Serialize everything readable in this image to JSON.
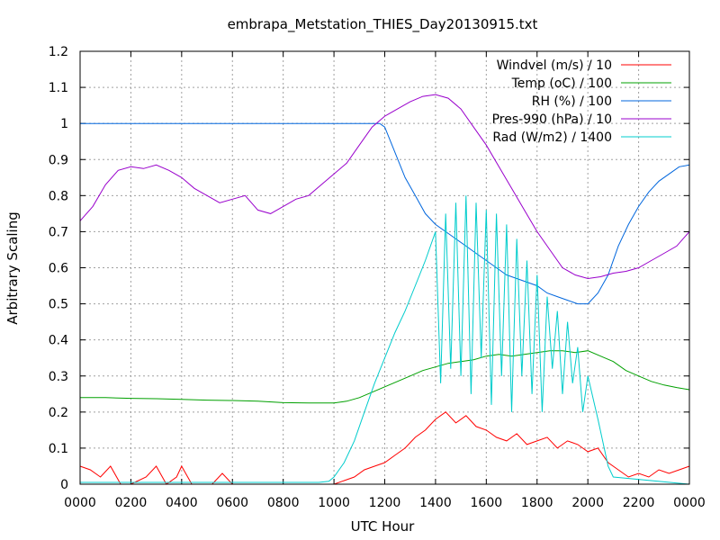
{
  "chart_data": {
    "type": "line",
    "title": "embrapa_Metstation_THIES_Day20130915.txt",
    "xlabel": "UTC Hour",
    "ylabel": "Arbitrary Scaling",
    "xlim": [
      0,
      2400
    ],
    "ylim": [
      0,
      1.2
    ],
    "x_ticks": [
      "0000",
      "0200",
      "0400",
      "0600",
      "0800",
      "1000",
      "1200",
      "1400",
      "1600",
      "1800",
      "2000",
      "2200",
      "0000"
    ],
    "y_ticks": [
      "0",
      "0.1",
      "0.2",
      "0.3",
      "0.4",
      "0.5",
      "0.6",
      "0.7",
      "0.8",
      "0.9",
      "1",
      "1.1",
      "1.2"
    ],
    "grid": true,
    "legend_position": "top-right",
    "series": [
      {
        "name": "Windvel (m/s) / 10",
        "color": "#ff0000",
        "x": [
          0,
          40,
          80,
          120,
          160,
          200,
          260,
          300,
          340,
          380,
          400,
          440,
          480,
          520,
          560,
          600,
          640,
          680,
          720,
          760,
          800,
          840,
          880,
          920,
          960,
          1000,
          1040,
          1080,
          1120,
          1160,
          1200,
          1240,
          1280,
          1320,
          1360,
          1400,
          1440,
          1480,
          1520,
          1560,
          1600,
          1640,
          1680,
          1720,
          1760,
          1800,
          1840,
          1880,
          1920,
          1960,
          2000,
          2040,
          2080,
          2120,
          2160,
          2200,
          2240,
          2280,
          2320,
          2360,
          2400
        ],
        "values": [
          0.05,
          0.04,
          0.02,
          0.05,
          0.0,
          0.0,
          0.02,
          0.05,
          0.0,
          0.02,
          0.05,
          0.0,
          0.0,
          0.0,
          0.03,
          0.0,
          0.0,
          0.0,
          0.0,
          0.0,
          0.0,
          0.0,
          0.0,
          0.0,
          0.0,
          0.0,
          0.01,
          0.02,
          0.04,
          0.05,
          0.06,
          0.08,
          0.1,
          0.13,
          0.15,
          0.18,
          0.2,
          0.17,
          0.19,
          0.16,
          0.15,
          0.13,
          0.12,
          0.14,
          0.11,
          0.12,
          0.13,
          0.1,
          0.12,
          0.11,
          0.09,
          0.1,
          0.06,
          0.04,
          0.02,
          0.03,
          0.02,
          0.04,
          0.03,
          0.04,
          0.05
        ]
      },
      {
        "name": "Temp (oC) / 100",
        "color": "#00a000",
        "x": [
          0,
          100,
          200,
          300,
          400,
          500,
          600,
          700,
          800,
          900,
          1000,
          1050,
          1100,
          1150,
          1200,
          1250,
          1300,
          1350,
          1400,
          1450,
          1500,
          1550,
          1600,
          1650,
          1700,
          1750,
          1800,
          1850,
          1900,
          1950,
          2000,
          2050,
          2100,
          2150,
          2200,
          2250,
          2300,
          2350,
          2400
        ],
        "values": [
          0.24,
          0.24,
          0.238,
          0.237,
          0.235,
          0.233,
          0.232,
          0.23,
          0.226,
          0.225,
          0.225,
          0.23,
          0.24,
          0.255,
          0.27,
          0.285,
          0.3,
          0.315,
          0.325,
          0.335,
          0.34,
          0.345,
          0.355,
          0.36,
          0.355,
          0.36,
          0.365,
          0.37,
          0.37,
          0.365,
          0.37,
          0.355,
          0.34,
          0.315,
          0.3,
          0.285,
          0.275,
          0.268,
          0.262
        ]
      },
      {
        "name": "RH (%) / 100",
        "color": "#0066dd",
        "x": [
          0,
          200,
          400,
          600,
          800,
          1000,
          1100,
          1180,
          1200,
          1240,
          1280,
          1320,
          1360,
          1400,
          1440,
          1480,
          1520,
          1560,
          1600,
          1640,
          1680,
          1720,
          1760,
          1800,
          1840,
          1880,
          1920,
          1960,
          2000,
          2040,
          2080,
          2120,
          2160,
          2200,
          2240,
          2280,
          2320,
          2360,
          2400
        ],
        "values": [
          1.0,
          1.0,
          1.0,
          1.0,
          1.0,
          1.0,
          1.0,
          1.0,
          0.99,
          0.92,
          0.85,
          0.8,
          0.75,
          0.72,
          0.7,
          0.68,
          0.66,
          0.64,
          0.62,
          0.6,
          0.58,
          0.57,
          0.56,
          0.55,
          0.53,
          0.52,
          0.51,
          0.5,
          0.5,
          0.53,
          0.58,
          0.66,
          0.72,
          0.77,
          0.81,
          0.84,
          0.86,
          0.88,
          0.885
        ]
      },
      {
        "name": "Pres-990 (hPa) / 10",
        "color": "#9900cc",
        "x": [
          0,
          50,
          100,
          150,
          200,
          250,
          300,
          350,
          400,
          450,
          500,
          550,
          600,
          650,
          700,
          750,
          800,
          850,
          900,
          950,
          1000,
          1050,
          1100,
          1150,
          1200,
          1250,
          1300,
          1350,
          1400,
          1450,
          1500,
          1550,
          1600,
          1650,
          1700,
          1750,
          1800,
          1850,
          1900,
          1950,
          2000,
          2050,
          2100,
          2150,
          2200,
          2250,
          2300,
          2350,
          2400
        ],
        "values": [
          0.73,
          0.77,
          0.83,
          0.87,
          0.88,
          0.875,
          0.885,
          0.87,
          0.85,
          0.82,
          0.8,
          0.78,
          0.79,
          0.8,
          0.76,
          0.75,
          0.77,
          0.79,
          0.8,
          0.83,
          0.86,
          0.89,
          0.94,
          0.99,
          1.02,
          1.04,
          1.06,
          1.075,
          1.08,
          1.07,
          1.04,
          0.99,
          0.94,
          0.88,
          0.82,
          0.76,
          0.7,
          0.65,
          0.6,
          0.58,
          0.57,
          0.575,
          0.585,
          0.59,
          0.6,
          0.62,
          0.64,
          0.66,
          0.7
        ]
      },
      {
        "name": "Rad (W/m2) / 1400",
        "color": "#00cccc",
        "x": [
          0,
          200,
          400,
          600,
          800,
          940,
          980,
          1000,
          1040,
          1080,
          1120,
          1160,
          1200,
          1240,
          1280,
          1320,
          1360,
          1400,
          1420,
          1440,
          1460,
          1480,
          1500,
          1520,
          1540,
          1560,
          1580,
          1600,
          1620,
          1640,
          1660,
          1680,
          1700,
          1720,
          1740,
          1760,
          1780,
          1800,
          1820,
          1840,
          1860,
          1880,
          1900,
          1920,
          1940,
          1960,
          1980,
          2000,
          2040,
          2080,
          2100,
          2400
        ],
        "values": [
          0.005,
          0.005,
          0.005,
          0.005,
          0.005,
          0.005,
          0.008,
          0.02,
          0.06,
          0.12,
          0.2,
          0.28,
          0.35,
          0.42,
          0.48,
          0.55,
          0.62,
          0.7,
          0.28,
          0.75,
          0.32,
          0.78,
          0.3,
          0.8,
          0.25,
          0.78,
          0.35,
          0.76,
          0.22,
          0.75,
          0.3,
          0.72,
          0.2,
          0.68,
          0.3,
          0.62,
          0.25,
          0.58,
          0.2,
          0.52,
          0.32,
          0.48,
          0.25,
          0.45,
          0.28,
          0.38,
          0.2,
          0.3,
          0.18,
          0.05,
          0.02,
          0.0
        ]
      }
    ]
  }
}
